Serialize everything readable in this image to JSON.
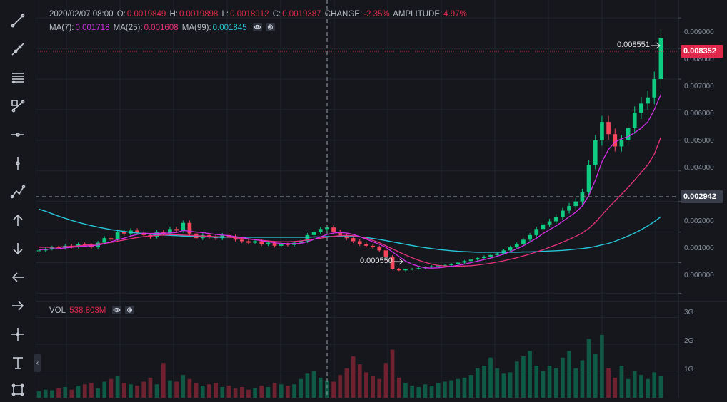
{
  "header": {
    "datetime": "2020/02/07 08:00",
    "open_label": "O:",
    "open": "0.0019849",
    "high_label": "H:",
    "high": "0.0019898",
    "low_label": "L:",
    "low": "0.0018912",
    "close_label": "C:",
    "close": "0.0019387",
    "change_label": "CHANGE:",
    "change": "-2.35%",
    "amplitude_label": "AMPLITUDE:",
    "amplitude": "4.97%"
  },
  "ma_legend": {
    "ma7_label": "MA(7):",
    "ma7": "0.001718",
    "ma25_label": "MA(25):",
    "ma25": "0.001608",
    "ma99_label": "MA(99):",
    "ma99": "0.001845"
  },
  "vol_legend": {
    "label": "VOL",
    "value": "538.803M"
  },
  "price_axis": [
    "0.009000",
    "0.008000",
    "0.007000",
    "0.006000",
    "0.005000",
    "0.004000",
    "0.003000",
    "0.002000",
    "0.001000",
    "0.000000"
  ],
  "volume_axis": [
    "3G",
    "2G",
    "1G"
  ],
  "current_price_tag": "0.008352",
  "crosshair_price_tag": "0.002942",
  "annotations": {
    "high_marker": "0.008551",
    "low_marker": "0.000550"
  },
  "toolbar": [
    "trend-line",
    "ray",
    "fib-retracement",
    "pattern",
    "horizontal-line",
    "vertical-line",
    "path",
    "arrow-up",
    "arrow-down",
    "arrow-left",
    "arrow-right",
    "crosshair",
    "text",
    "rectangle"
  ],
  "colors": {
    "up": "#0ecb81",
    "down": "#f6465d",
    "ma7": "#d42ee8",
    "ma25": "#e8317e",
    "ma99": "#26c6da",
    "price_tag": "#e0294a",
    "crosshair_tag": "#3a3e4a"
  },
  "chart_data": {
    "type": "candlestick",
    "ylim": [
      -0.0002,
      0.0094
    ],
    "volume_ylim": [
      0,
      3.2
    ],
    "volume_unit": "G",
    "closes": [
      0.0014,
      0.00145,
      0.0015,
      0.00148,
      0.00155,
      0.00152,
      0.0016,
      0.00158,
      0.0015,
      0.00165,
      0.0018,
      0.00175,
      0.002,
      0.00195,
      0.00205,
      0.00198,
      0.0019,
      0.00185,
      0.002,
      0.00195,
      0.0021,
      0.00205,
      0.0023,
      0.00195,
      0.0018,
      0.0019,
      0.00185,
      0.0018,
      0.0019,
      0.00185,
      0.00175,
      0.0017,
      0.00165,
      0.0017,
      0.0016,
      0.00165,
      0.00155,
      0.0016,
      0.00158,
      0.00165,
      0.0017,
      0.0019,
      0.002,
      0.0021,
      0.00215,
      0.002,
      0.0019,
      0.0018,
      0.0017,
      0.0016,
      0.00155,
      0.0015,
      0.0014,
      0.0012,
      0.0008,
      0.00075,
      0.00078,
      0.0008,
      0.00082,
      0.00085,
      0.00088,
      0.0009,
      0.00092,
      0.00095,
      0.001,
      0.00105,
      0.0011,
      0.00115,
      0.0012,
      0.00125,
      0.0013,
      0.0014,
      0.0015,
      0.0016,
      0.00175,
      0.0019,
      0.0021,
      0.00225,
      0.00235,
      0.0025,
      0.0027,
      0.00285,
      0.003,
      0.0033,
      0.0042,
      0.005,
      0.0056,
      0.0052,
      0.0048,
      0.005,
      0.0054,
      0.0059,
      0.0062,
      0.0064,
      0.007,
      0.00835
    ],
    "volumes": [
      0.25,
      0.3,
      0.28,
      0.35,
      0.4,
      0.3,
      0.45,
      0.5,
      0.55,
      0.35,
      0.6,
      0.7,
      0.8,
      0.55,
      0.5,
      0.45,
      0.6,
      0.75,
      0.5,
      1.3,
      0.65,
      0.6,
      0.85,
      0.7,
      0.55,
      0.45,
      0.5,
      0.55,
      0.4,
      0.45,
      0.35,
      0.4,
      0.3,
      0.35,
      0.45,
      0.4,
      0.55,
      0.5,
      0.45,
      0.5,
      0.7,
      0.9,
      1.0,
      0.75,
      0.65,
      0.6,
      0.85,
      1.1,
      1.55,
      1.25,
      0.95,
      0.8,
      0.7,
      1.3,
      1.8,
      0.75,
      0.55,
      0.45,
      0.4,
      0.5,
      0.45,
      0.55,
      0.6,
      0.65,
      0.7,
      0.75,
      0.85,
      1.1,
      1.2,
      1.5,
      1.1,
      0.9,
      0.95,
      1.35,
      1.55,
      1.75,
      1.2,
      1.0,
      1.2,
      1.1,
      1.5,
      1.75,
      1.1,
      1.4,
      2.2,
      1.65,
      2.35,
      1.1,
      0.75,
      1.2,
      0.7,
      1.0,
      0.85,
      0.7,
      0.95,
      0.8
    ],
    "ma7": [
      0.00142,
      0.00143,
      0.00145,
      0.00146,
      0.00148,
      0.0015,
      0.00152,
      0.00154,
      0.00155,
      0.00157,
      0.00162,
      0.00168,
      0.00175,
      0.0018,
      0.00187,
      0.00192,
      0.00196,
      0.00195,
      0.00196,
      0.00196,
      0.00197,
      0.00198,
      0.00205,
      0.00203,
      0.002,
      0.00198,
      0.00195,
      0.00192,
      0.0019,
      0.00188,
      0.00185,
      0.00182,
      0.00178,
      0.00175,
      0.00172,
      0.00168,
      0.00165,
      0.00163,
      0.00162,
      0.00162,
      0.00163,
      0.00168,
      0.00176,
      0.00184,
      0.00192,
      0.00197,
      0.00198,
      0.00197,
      0.00192,
      0.00185,
      0.00177,
      0.00168,
      0.0016,
      0.0015,
      0.00135,
      0.0012,
      0.00105,
      0.00095,
      0.00088,
      0.00083,
      0.00082,
      0.00083,
      0.00085,
      0.00088,
      0.00091,
      0.00095,
      0.001,
      0.00105,
      0.0011,
      0.00115,
      0.00121,
      0.00128,
      0.00136,
      0.00145,
      0.00155,
      0.00167,
      0.0018,
      0.00195,
      0.00208,
      0.0022,
      0.00235,
      0.0025,
      0.00265,
      0.00285,
      0.0032,
      0.0037,
      0.0043,
      0.0047,
      0.00495,
      0.00505,
      0.00512,
      0.00525,
      0.0054,
      0.0056,
      0.006,
      0.0065
    ],
    "ma25": [
      0.0015,
      0.0015,
      0.0015,
      0.00151,
      0.00152,
      0.00153,
      0.00155,
      0.00157,
      0.00159,
      0.00161,
      0.00163,
      0.00166,
      0.0017,
      0.00174,
      0.00178,
      0.00182,
      0.00185,
      0.00187,
      0.00189,
      0.0019,
      0.00191,
      0.00191,
      0.0019,
      0.00189,
      0.00188,
      0.00187,
      0.00186,
      0.00185,
      0.00184,
      0.00183,
      0.00181,
      0.00179,
      0.00177,
      0.00175,
      0.00173,
      0.00171,
      0.00169,
      0.00168,
      0.00168,
      0.00169,
      0.00171,
      0.00174,
      0.00177,
      0.0018,
      0.00183,
      0.00186,
      0.00188,
      0.00189,
      0.00188,
      0.00185,
      0.0018,
      0.00173,
      0.00165,
      0.00155,
      0.00145,
      0.00135,
      0.00125,
      0.00116,
      0.00108,
      0.00101,
      0.00095,
      0.00091,
      0.00089,
      0.00088,
      0.00088,
      0.00089,
      0.0009,
      0.00092,
      0.00095,
      0.00098,
      0.00102,
      0.00106,
      0.00111,
      0.00116,
      0.00122,
      0.00128,
      0.00135,
      0.00142,
      0.0015,
      0.00158,
      0.00167,
      0.00176,
      0.00186,
      0.00197,
      0.00212,
      0.00232,
      0.00256,
      0.0028,
      0.00302,
      0.00324,
      0.00346,
      0.0037,
      0.00395,
      0.0042,
      0.00455,
      0.0051
    ],
    "ma99": [
      0.00275,
      0.00268,
      0.0026,
      0.00252,
      0.00245,
      0.00238,
      0.00232,
      0.00226,
      0.00221,
      0.00216,
      0.00212,
      0.00208,
      0.00205,
      0.00202,
      0.00199,
      0.00197,
      0.00195,
      0.00193,
      0.00191,
      0.0019,
      0.00189,
      0.00188,
      0.00187,
      0.00186,
      0.00185,
      0.00184,
      0.00184,
      0.00183,
      0.00183,
      0.00183,
      0.00183,
      0.00183,
      0.00183,
      0.00183,
      0.00183,
      0.00183,
      0.00183,
      0.00183,
      0.00183,
      0.00183,
      0.00183,
      0.00183,
      0.00184,
      0.00184,
      0.00185,
      0.00185,
      0.00185,
      0.00185,
      0.00185,
      0.00184,
      0.00182,
      0.00179,
      0.00176,
      0.00172,
      0.00168,
      0.00164,
      0.0016,
      0.00156,
      0.00152,
      0.00149,
      0.00146,
      0.00143,
      0.00141,
      0.00139,
      0.00137,
      0.00136,
      0.00135,
      0.00134,
      0.00134,
      0.00134,
      0.00134,
      0.00134,
      0.00134,
      0.00134,
      0.00135,
      0.00135,
      0.00136,
      0.00137,
      0.00138,
      0.00139,
      0.0014,
      0.00142,
      0.00144,
      0.00146,
      0.00149,
      0.00153,
      0.00158,
      0.00163,
      0.0017,
      0.00178,
      0.00187,
      0.00197,
      0.00208,
      0.0022,
      0.00234,
      0.0025
    ]
  }
}
